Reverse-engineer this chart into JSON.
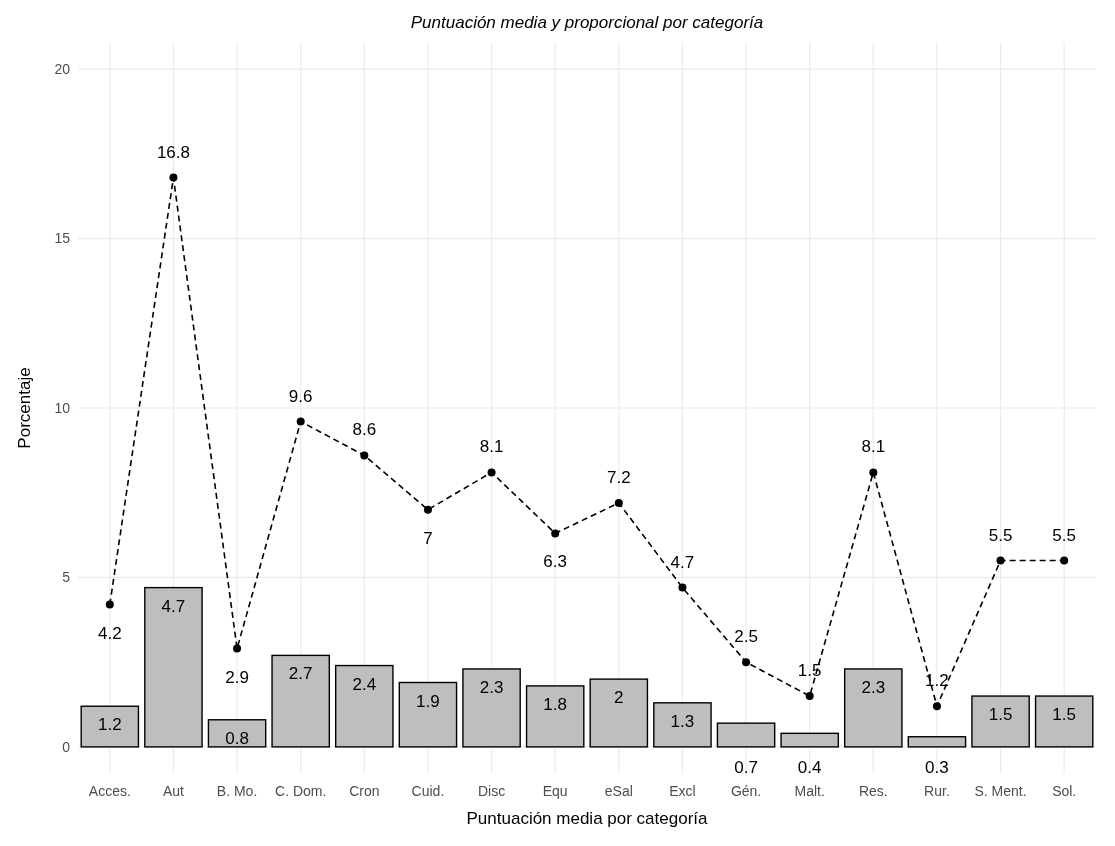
{
  "chart_data": {
    "type": "bar",
    "title": "Puntuación media y proporcional por categoría",
    "xlabel": "Puntuación media por categoría",
    "ylabel": "Porcentaje",
    "categories": [
      "Acces.",
      "Aut",
      "B. Mo.",
      "C. Dom.",
      "Cron",
      "Cuid.",
      "Disc",
      "Equ",
      "eSal",
      "Excl",
      "Gén.",
      "Malt.",
      "Res.",
      "Rur.",
      "S. Ment.",
      "Sol."
    ],
    "series": [
      {
        "color": "#bebebe",
        "values": [
          1.2,
          4.7,
          0.8,
          2.7,
          2.4,
          1.9,
          2.3,
          1.8,
          2,
          1.3,
          0.7,
          0.4,
          2.3,
          0.3,
          1.5,
          1.5
        ]
      },
      {
        "type": "line",
        "color": "#000000",
        "line_style": "dashed",
        "marker": "circle",
        "values": [
          4.2,
          16.8,
          2.9,
          9.6,
          8.6,
          7,
          8.1,
          6.3,
          7.2,
          4.7,
          2.5,
          1.5,
          8.1,
          1.2,
          5.5,
          5.5
        ]
      }
    ],
    "ylim": [
      -0.8,
      20.8
    ],
    "yticks": [
      0,
      5,
      10,
      15,
      20
    ],
    "grid": true,
    "data_labels": true
  }
}
